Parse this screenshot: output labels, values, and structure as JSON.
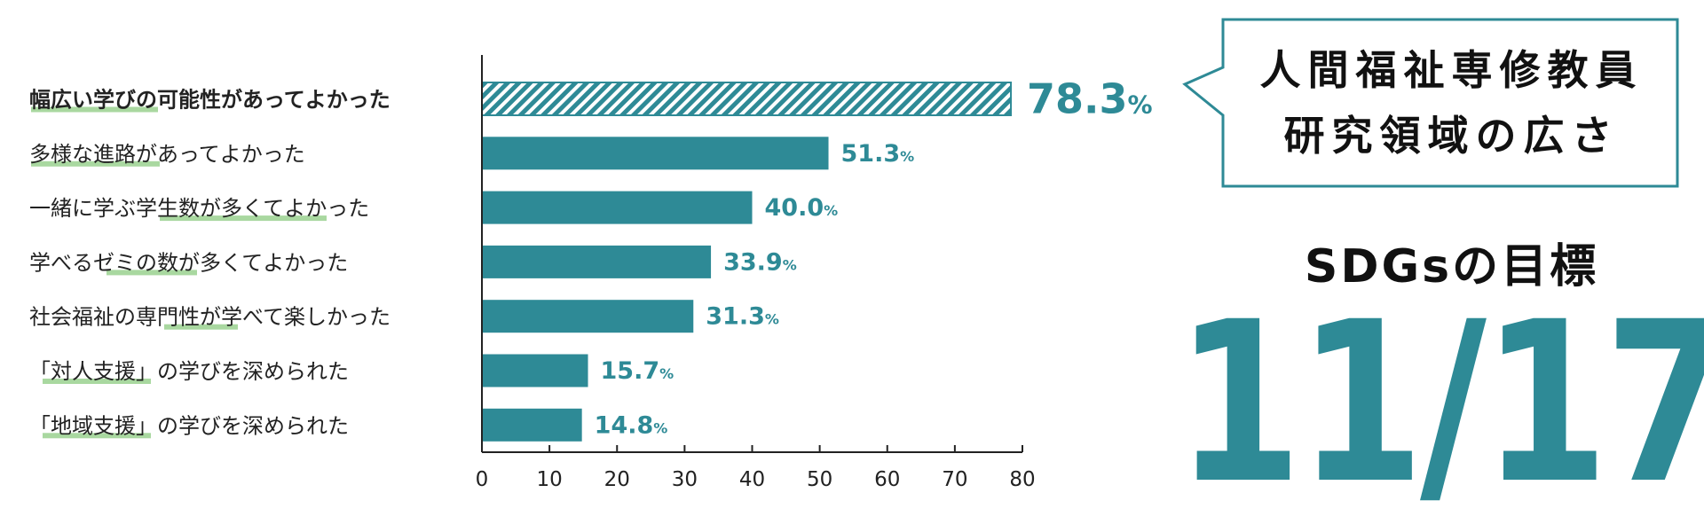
{
  "chart_data": {
    "type": "bar",
    "orientation": "horizontal",
    "categories": [
      "幅広い学びの可能性があってよかった",
      "多様な進路があってよかった",
      "一緒に学ぶ学生数が多くてよかった",
      "学べるゼミの数が多くてよかった",
      "社会福祉の専門性が学べて楽しかった",
      "「対人支援」の学びを深められた",
      "「地域支援」の学びを深められた"
    ],
    "value_labels": [
      "78.3",
      "51.3",
      "40.0",
      "33.9",
      "31.3",
      "15.7",
      "14.8"
    ],
    "values": [
      78.3,
      51.3,
      40.0,
      33.9,
      31.3,
      15.7,
      14.8
    ],
    "unit": "%",
    "highlight_index": 0,
    "xlim": [
      0,
      80
    ],
    "xticks": [
      "0",
      "10",
      "20",
      "30",
      "40",
      "50",
      "60",
      "70",
      "80"
    ],
    "grid": false,
    "bar_color": "#2e8a96",
    "highlight_pattern": "diagonal-hatch",
    "underline_color": "#a9d8a0"
  },
  "callout": {
    "line1": "人間福祉専修教員",
    "line2": "研究領域の広さ",
    "border_color": "#2e8a96"
  },
  "sdg": {
    "title": "SDGsの目標",
    "count": "11/17",
    "color": "#2e8a96"
  }
}
